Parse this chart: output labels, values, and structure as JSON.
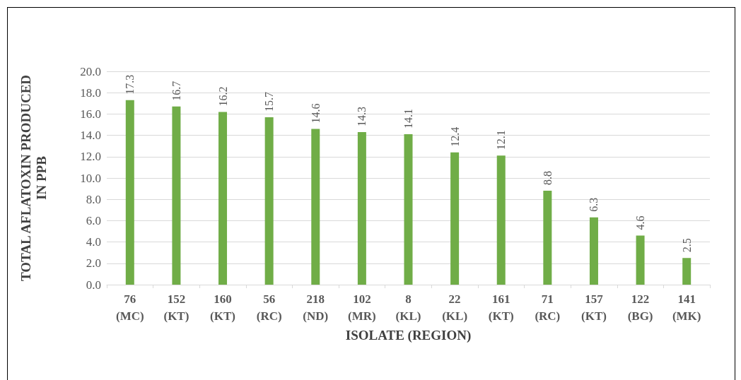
{
  "chart_data": {
    "type": "bar",
    "xlabel": "ISOLATE (REGION)",
    "ylabel": "TOTAL AFLATOXIN PRODUCED IN PPB",
    "categories": [
      "76 (MC)",
      "152 (KT)",
      "160 (KT)",
      "56 (RC)",
      "218 (ND)",
      "102 (MR)",
      "8 (KL)",
      "22 (KL)",
      "161 (KT)",
      "71 (RC)",
      "157 (KT)",
      "122 (BG)",
      "141 (MK)"
    ],
    "values": [
      17.3,
      16.7,
      16.2,
      15.7,
      14.6,
      14.3,
      14.1,
      12.4,
      12.1,
      8.8,
      6.3,
      4.6,
      2.5
    ],
    "color": "#70ad47",
    "ylim": [
      0,
      20
    ],
    "yticks": [
      {
        "value": 0,
        "label": "0.0"
      },
      {
        "value": 2,
        "label": "2.0"
      },
      {
        "value": 4,
        "label": "4.0"
      },
      {
        "value": 6,
        "label": "6.0"
      },
      {
        "value": 8,
        "label": "8.0"
      },
      {
        "value": 10,
        "label": "10.0"
      },
      {
        "value": 12,
        "label": "12.0"
      },
      {
        "value": 14,
        "label": "14.0"
      },
      {
        "value": 16,
        "label": "16.0"
      },
      {
        "value": 18,
        "label": "18.0"
      },
      {
        "value": 20,
        "label": "20.0"
      }
    ],
    "grid": "y",
    "data_labels": true
  }
}
